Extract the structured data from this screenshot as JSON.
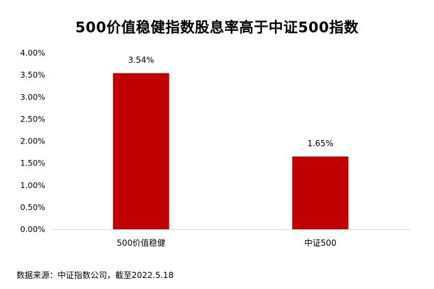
{
  "chart_data": {
    "type": "bar",
    "title": "500价值稳健指数股息率高于中证500指数",
    "categories": [
      "500价值稳健",
      "中证500"
    ],
    "values": [
      3.54,
      1.65
    ],
    "data_labels": [
      "3.54%",
      "1.65%"
    ],
    "y_tick_labels": [
      "0.00%",
      "0.50%",
      "1.00%",
      "1.50%",
      "2.00%",
      "2.50%",
      "3.00%",
      "3.50%",
      "4.00%"
    ],
    "ylim": [
      0,
      4
    ],
    "xlabel": "",
    "ylabel": "",
    "grid": false,
    "legend": "none",
    "bar_color": "#c00000"
  },
  "source": "数据来源：中证指数公司，截至2022.5.18"
}
